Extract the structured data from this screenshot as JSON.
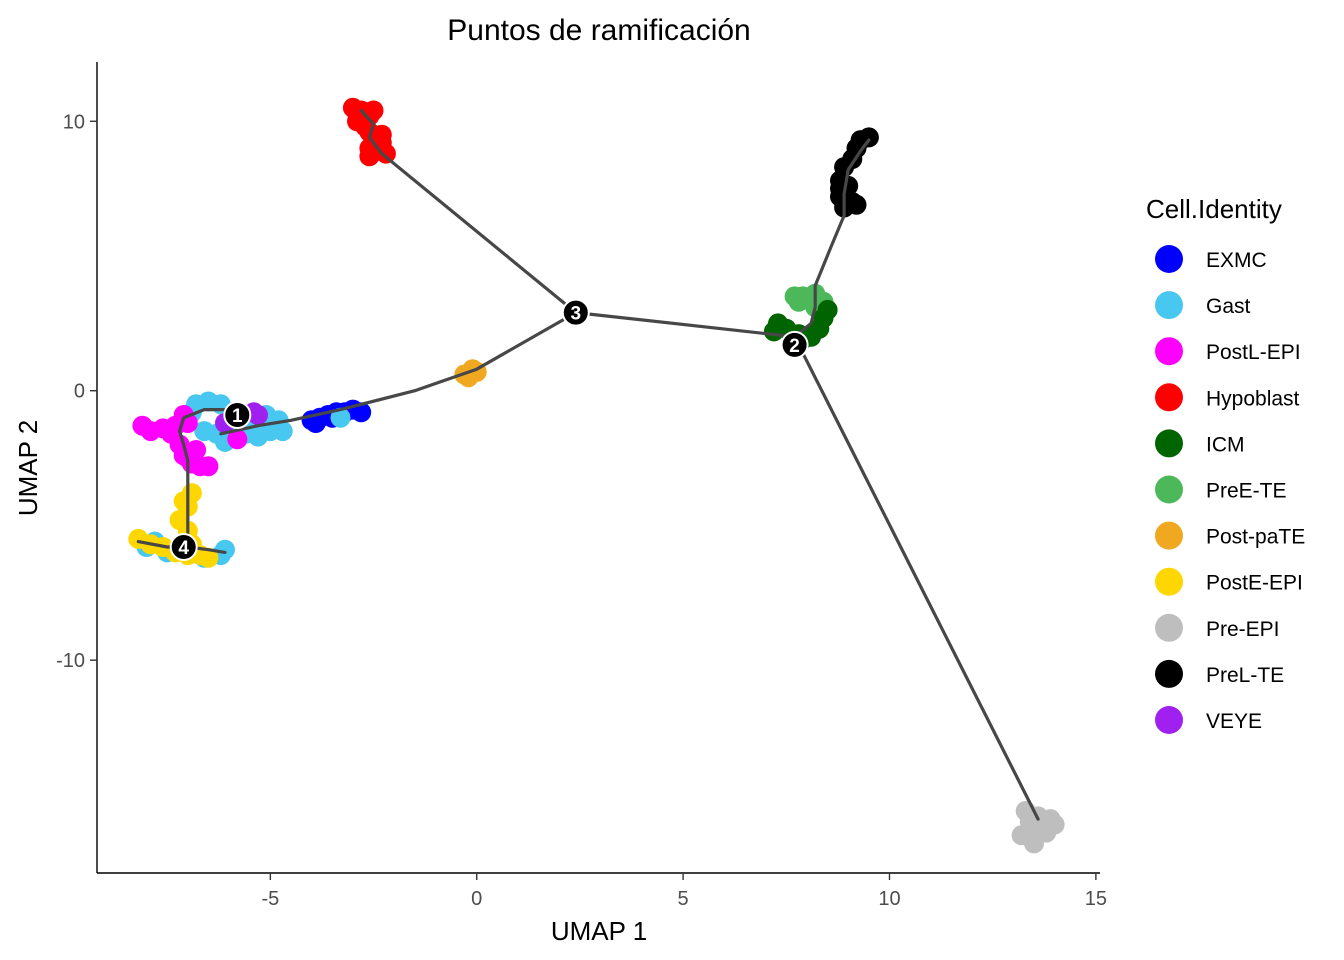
{
  "chart_data": {
    "type": "scatter",
    "title": "Puntos de ramificación",
    "xlabel": "UMAP 1",
    "ylabel": "UMAP 2",
    "xlim": [
      -9.2,
      15.1
    ],
    "ylim": [
      -17.9,
      12.2
    ],
    "x_ticks": [
      -5,
      0,
      5,
      10,
      15
    ],
    "x_tick_labels": [
      "-5",
      "0",
      "5",
      "10",
      "15"
    ],
    "y_ticks": [
      10,
      0,
      -10
    ],
    "y_tick_labels": [
      "10",
      "0",
      "-10"
    ],
    "grid": false,
    "legend": {
      "title": "Cell.Identity",
      "position": "right",
      "entries": [
        {
          "label": "EXMC",
          "color": "#0000FF"
        },
        {
          "label": "Gast",
          "color": "#48C8F0"
        },
        {
          "label": "PostL-EPI",
          "color": "#FF00FF"
        },
        {
          "label": "Hypoblast",
          "color": "#FF0000"
        },
        {
          "label": "ICM",
          "color": "#006400"
        },
        {
          "label": "PreE-TE",
          "color": "#4CB85A"
        },
        {
          "label": "Post-paTE",
          "color": "#F0A820"
        },
        {
          "label": "PostE-EPI",
          "color": "#FFD700"
        },
        {
          "label": "Pre-EPI",
          "color": "#BEBEBE"
        },
        {
          "label": "PreL-TE",
          "color": "#000000"
        },
        {
          "label": "VEYE",
          "color": "#A020F0"
        }
      ]
    },
    "clusters": [
      {
        "name": "Hypoblast",
        "color": "#FF0000",
        "points": [
          [
            -2.8,
            10.4
          ],
          [
            -2.9,
            10.3
          ],
          [
            -2.6,
            10.2
          ],
          [
            -2.9,
            10.0
          ],
          [
            -2.7,
            9.8
          ],
          [
            -2.6,
            9.6
          ],
          [
            -2.5,
            9.3
          ],
          [
            -2.3,
            9.2
          ],
          [
            -2.6,
            9.0
          ],
          [
            -2.4,
            8.9
          ],
          [
            -2.2,
            8.8
          ],
          [
            -2.6,
            8.7
          ],
          [
            -2.3,
            9.5
          ],
          [
            -3.0,
            10.5
          ],
          [
            -2.5,
            10.4
          ]
        ]
      },
      {
        "name": "PreL-TE",
        "color": "#000000",
        "points": [
          [
            9.5,
            9.4
          ],
          [
            9.3,
            9.3
          ],
          [
            9.2,
            9.0
          ],
          [
            9.1,
            8.6
          ],
          [
            8.9,
            8.3
          ],
          [
            8.8,
            7.8
          ],
          [
            9.0,
            7.6
          ],
          [
            8.8,
            7.2
          ],
          [
            9.1,
            7.0
          ],
          [
            8.9,
            6.8
          ],
          [
            9.2,
            6.9
          ],
          [
            8.8,
            7.5
          ]
        ]
      },
      {
        "name": "PreE-TE",
        "color": "#4CB85A",
        "points": [
          [
            7.7,
            3.5
          ],
          [
            7.9,
            3.5
          ],
          [
            8.2,
            3.6
          ],
          [
            8.4,
            3.3
          ],
          [
            8.5,
            3.0
          ],
          [
            8.2,
            3.1
          ],
          [
            7.8,
            3.3
          ]
        ]
      },
      {
        "name": "ICM",
        "color": "#006400",
        "points": [
          [
            7.3,
            2.5
          ],
          [
            7.5,
            2.3
          ],
          [
            7.8,
            2.1
          ],
          [
            8.1,
            2.0
          ],
          [
            8.3,
            2.3
          ],
          [
            8.4,
            2.7
          ],
          [
            8.5,
            3.0
          ],
          [
            7.2,
            2.2
          ],
          [
            7.9,
            1.9
          ]
        ]
      },
      {
        "name": "Post-paTE",
        "color": "#F0A820",
        "points": [
          [
            -0.3,
            0.6
          ],
          [
            -0.1,
            0.8
          ],
          [
            0.0,
            0.7
          ],
          [
            -0.2,
            0.5
          ]
        ]
      },
      {
        "name": "EXMC",
        "color": "#0000FF",
        "points": [
          [
            -4.0,
            -1.1
          ],
          [
            -3.8,
            -1.0
          ],
          [
            -3.6,
            -0.9
          ],
          [
            -3.4,
            -0.8
          ],
          [
            -3.2,
            -0.8
          ],
          [
            -3.0,
            -0.7
          ],
          [
            -2.8,
            -0.8
          ],
          [
            -3.5,
            -1.0
          ],
          [
            -3.9,
            -1.2
          ]
        ]
      },
      {
        "name": "Gast",
        "color": "#48C8F0",
        "points": [
          [
            -6.8,
            -0.5
          ],
          [
            -6.5,
            -0.4
          ],
          [
            -6.2,
            -0.5
          ],
          [
            -6.9,
            -0.8
          ],
          [
            -7.1,
            -1.1
          ],
          [
            -6.6,
            -1.5
          ],
          [
            -6.3,
            -1.6
          ],
          [
            -5.9,
            -1.7
          ],
          [
            -5.6,
            -1.6
          ],
          [
            -5.3,
            -1.7
          ],
          [
            -5.0,
            -1.5
          ],
          [
            -4.7,
            -1.5
          ],
          [
            -5.5,
            -1.2
          ],
          [
            -5.1,
            -0.9
          ],
          [
            -4.8,
            -1.1
          ],
          [
            -6.1,
            -1.9
          ],
          [
            -3.3,
            -1.0
          ],
          [
            -8.0,
            -5.8
          ],
          [
            -7.5,
            -6.0
          ],
          [
            -6.6,
            -6.2
          ],
          [
            -6.2,
            -6.1
          ],
          [
            -6.1,
            -5.9
          ],
          [
            -7.8,
            -5.6
          ],
          [
            -7.0,
            -5.7
          ]
        ]
      },
      {
        "name": "PostL-EPI",
        "color": "#FF00FF",
        "points": [
          [
            -8.1,
            -1.3
          ],
          [
            -7.9,
            -1.5
          ],
          [
            -7.6,
            -1.4
          ],
          [
            -7.4,
            -1.6
          ],
          [
            -7.3,
            -1.3
          ],
          [
            -7.0,
            -1.2
          ],
          [
            -7.1,
            -0.9
          ],
          [
            -7.2,
            -2.0
          ],
          [
            -7.1,
            -2.4
          ],
          [
            -6.9,
            -2.7
          ],
          [
            -6.7,
            -2.8
          ],
          [
            -7.0,
            -2.5
          ],
          [
            -6.8,
            -2.2
          ],
          [
            -6.5,
            -2.8
          ],
          [
            -5.8,
            -1.8
          ]
        ]
      },
      {
        "name": "PostE-EPI",
        "color": "#FFD700",
        "points": [
          [
            -8.2,
            -5.5
          ],
          [
            -7.9,
            -5.7
          ],
          [
            -7.6,
            -5.8
          ],
          [
            -7.3,
            -6.0
          ],
          [
            -7.0,
            -6.1
          ],
          [
            -6.7,
            -6.1
          ],
          [
            -6.5,
            -6.2
          ],
          [
            -6.9,
            -5.7
          ],
          [
            -7.2,
            -4.8
          ],
          [
            -7.0,
            -4.3
          ],
          [
            -6.9,
            -3.8
          ],
          [
            -7.1,
            -4.1
          ],
          [
            -7.0,
            -5.2
          ]
        ]
      },
      {
        "name": "VEYE",
        "color": "#A020F0",
        "points": [
          [
            -5.4,
            -0.8
          ],
          [
            -5.3,
            -0.9
          ],
          [
            -6.1,
            -1.2
          ]
        ]
      },
      {
        "name": "Pre-EPI",
        "color": "#BEBEBE",
        "points": [
          [
            13.3,
            -15.6
          ],
          [
            13.6,
            -15.8
          ],
          [
            13.9,
            -15.9
          ],
          [
            13.7,
            -16.2
          ],
          [
            13.4,
            -16.4
          ],
          [
            13.5,
            -16.8
          ],
          [
            13.2,
            -16.5
          ],
          [
            13.8,
            -16.4
          ],
          [
            14.0,
            -16.1
          ],
          [
            13.4,
            -16.0
          ]
        ]
      }
    ],
    "trajectory": [
      [
        [
          2.4,
          2.9
        ],
        [
          -2.3,
          8.8
        ],
        [
          -2.6,
          9.4
        ],
        [
          -2.5,
          9.9
        ],
        [
          -2.8,
          10.4
        ]
      ],
      [
        [
          2.4,
          2.9
        ],
        [
          7.7,
          2.0
        ]
      ],
      [
        [
          7.7,
          2.0
        ],
        [
          8.1,
          2.5
        ],
        [
          8.2,
          3.1
        ],
        [
          8.2,
          3.9
        ],
        [
          8.6,
          5.4
        ],
        [
          8.9,
          6.5
        ],
        [
          8.9,
          7.3
        ],
        [
          9.0,
          8.2
        ],
        [
          9.3,
          8.9
        ],
        [
          9.5,
          9.3
        ]
      ],
      [
        [
          7.7,
          2.0
        ],
        [
          13.6,
          -15.9
        ]
      ],
      [
        [
          2.4,
          2.9
        ],
        [
          0.0,
          0.8
        ],
        [
          -1.5,
          0.0
        ],
        [
          -3.3,
          -0.7
        ],
        [
          -4.5,
          -1.1
        ],
        [
          -5.3,
          -1.3
        ],
        [
          -6.2,
          -1.6
        ]
      ],
      [
        [
          -5.5,
          -0.9
        ],
        [
          -6.0,
          -0.7
        ],
        [
          -6.6,
          -0.7
        ],
        [
          -7.1,
          -1.0
        ],
        [
          -7.2,
          -1.5
        ],
        [
          -7.1,
          -2.0
        ],
        [
          -7.0,
          -2.6
        ],
        [
          -7.0,
          -3.3
        ],
        [
          -7.0,
          -4.1
        ],
        [
          -7.0,
          -5.0
        ],
        [
          -7.0,
          -5.8
        ]
      ],
      [
        [
          -8.2,
          -5.6
        ],
        [
          -7.5,
          -5.8
        ],
        [
          -7.0,
          -5.8
        ],
        [
          -6.5,
          -5.9
        ],
        [
          -6.1,
          -6.0
        ]
      ]
    ],
    "branch_points": [
      {
        "label": "1",
        "x": -5.8,
        "y": -0.9
      },
      {
        "label": "2",
        "x": 7.7,
        "y": 1.7
      },
      {
        "label": "3",
        "x": 2.4,
        "y": 2.9
      },
      {
        "label": "4",
        "x": -7.1,
        "y": -5.8
      }
    ]
  }
}
